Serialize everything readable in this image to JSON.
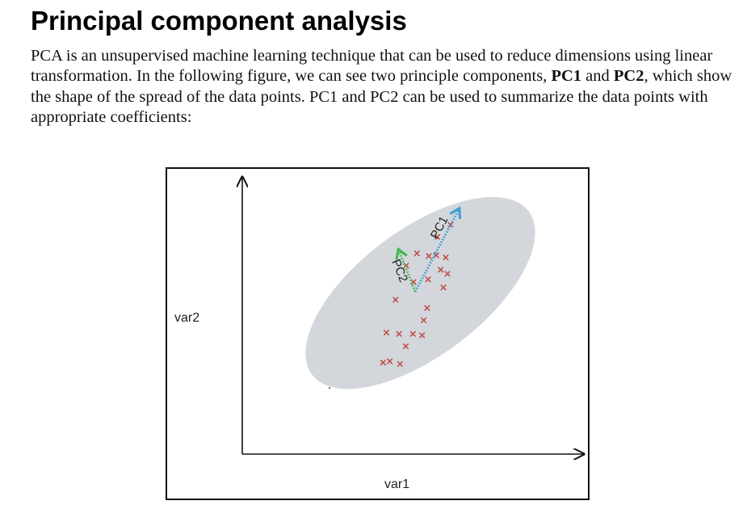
{
  "page": {
    "title": "Principal component analysis",
    "paragraph": {
      "text_1": "PCA is an unsupervised machine learning technique that can be used to reduce dimensions using linear transformation. In the following figure, we can see two principle components, ",
      "bold_1": "PC1",
      "text_2": " and ",
      "bold_2": "PC2",
      "text_3": ", which show the shape of the spread of the data points. PC1 and PC2 can be used to summarize the data points with appropriate coefficients:"
    }
  },
  "figure": {
    "xlabel": "var1",
    "ylabel": "var2",
    "pc1_label": "PC1",
    "pc2_label": "PC2",
    "colors": {
      "ellipse": "#d3d6db",
      "marker": "#c0504d",
      "pc1_arrow": "#3aa0d6",
      "pc2_arrow": "#3db84a",
      "axis": "#111111"
    }
  },
  "chart_data": {
    "type": "scatter",
    "title": "",
    "xlabel": "var1",
    "ylabel": "var2",
    "grid": false,
    "points": [
      {
        "x": 0.415,
        "y": 0.335
      },
      {
        "x": 0.435,
        "y": 0.34
      },
      {
        "x": 0.465,
        "y": 0.33
      },
      {
        "x": 0.425,
        "y": 0.445
      },
      {
        "x": 0.462,
        "y": 0.44
      },
      {
        "x": 0.482,
        "y": 0.395
      },
      {
        "x": 0.503,
        "y": 0.44
      },
      {
        "x": 0.53,
        "y": 0.435
      },
      {
        "x": 0.452,
        "y": 0.565
      },
      {
        "x": 0.545,
        "y": 0.535
      },
      {
        "x": 0.535,
        "y": 0.49
      },
      {
        "x": 0.483,
        "y": 0.69
      },
      {
        "x": 0.515,
        "y": 0.735
      },
      {
        "x": 0.505,
        "y": 0.63
      },
      {
        "x": 0.55,
        "y": 0.725
      },
      {
        "x": 0.548,
        "y": 0.64
      },
      {
        "x": 0.575,
        "y": 0.795
      },
      {
        "x": 0.585,
        "y": 0.675
      },
      {
        "x": 0.572,
        "y": 0.728
      },
      {
        "x": 0.605,
        "y": 0.66
      },
      {
        "x": 0.593,
        "y": 0.61
      },
      {
        "x": 0.6,
        "y": 0.72
      },
      {
        "x": 0.614,
        "y": 0.84
      }
    ],
    "components": [
      {
        "name": "PC1",
        "from": [
          0.51,
          0.595
        ],
        "to": [
          0.64,
          0.9
        ]
      },
      {
        "name": "PC2",
        "from": [
          0.51,
          0.595
        ],
        "to": [
          0.46,
          0.75
        ]
      }
    ]
  }
}
